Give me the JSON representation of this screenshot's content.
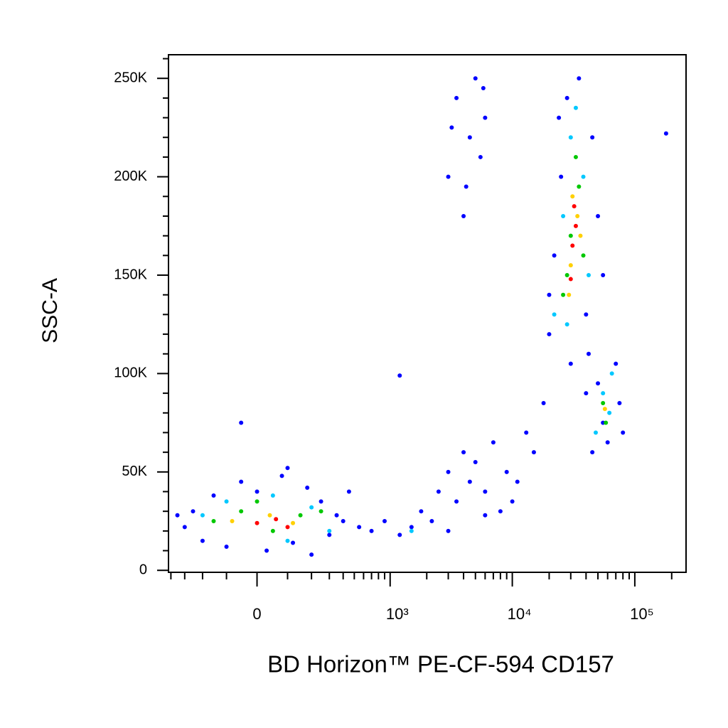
{
  "chart_data": {
    "type": "scatter",
    "xlabel": "BD Horizon™ PE-CF-594 CD157",
    "ylabel": "SSC-A",
    "xscale": "biexponential",
    "xlim": [
      -420,
      262000
    ],
    "ylim": [
      -1000,
      262000
    ],
    "xticks": [
      0,
      {
        "value": 1000,
        "label": "10³"
      },
      {
        "value": 10000,
        "label": "10⁴"
      },
      {
        "value": 100000,
        "label": "10⁵"
      }
    ],
    "yticks": [
      0,
      {
        "value": 50000,
        "label": "50K"
      },
      {
        "value": 100000,
        "label": "100K"
      },
      {
        "value": 150000,
        "label": "150K"
      },
      {
        "value": 200000,
        "label": "200K"
      },
      {
        "value": 250000,
        "label": "250K"
      }
    ],
    "series": [
      {
        "color": "#0000ff",
        "x": [
          -300,
          -250,
          -200,
          -150,
          -100,
          -50,
          0,
          30,
          80,
          120,
          180,
          250,
          300,
          350,
          450,
          550,
          -350,
          200,
          400,
          100,
          700,
          900,
          1200,
          1500,
          1800,
          2200,
          2500,
          3000,
          3500,
          4000,
          4500,
          5000,
          6000,
          7000,
          8000,
          9000,
          11000,
          13000,
          15000,
          18000,
          3000,
          6000,
          10000,
          3000,
          3500,
          4000,
          4500,
          5000,
          5500,
          6000,
          3200,
          4200,
          5800,
          20000,
          22000,
          25000,
          28000,
          30000,
          35000,
          40000,
          45000,
          50000,
          55000,
          20000,
          24000,
          42000,
          45000,
          50000,
          60000,
          70000,
          75000,
          55000,
          80000,
          40000,
          180000,
          1200,
          -50
        ],
        "y": [
          22000,
          30000,
          15000,
          38000,
          12000,
          45000,
          40000,
          10000,
          48000,
          14000,
          42000,
          35000,
          18000,
          28000,
          40000,
          22000,
          28000,
          8000,
          25000,
          52000,
          20000,
          25000,
          18000,
          22000,
          30000,
          25000,
          40000,
          50000,
          35000,
          60000,
          45000,
          55000,
          40000,
          65000,
          30000,
          50000,
          45000,
          70000,
          60000,
          85000,
          20000,
          28000,
          35000,
          200000,
          240000,
          180000,
          220000,
          250000,
          210000,
          230000,
          225000,
          195000,
          245000,
          120000,
          160000,
          200000,
          240000,
          105000,
          250000,
          130000,
          220000,
          180000,
          150000,
          140000,
          230000,
          110000,
          60000,
          95000,
          65000,
          105000,
          85000,
          75000,
          70000,
          90000,
          222000,
          99000,
          75000
        ]
      },
      {
        "color": "#00c8ff",
        "x": [
          -200,
          -100,
          50,
          200,
          300,
          100,
          1500,
          22000,
          26000,
          30000,
          38000,
          42000,
          28000,
          33000,
          55000,
          62000,
          48000,
          65000
        ],
        "y": [
          28000,
          35000,
          38000,
          32000,
          20000,
          15000,
          20000,
          130000,
          180000,
          220000,
          200000,
          150000,
          125000,
          235000,
          90000,
          80000,
          70000,
          100000
        ]
      },
      {
        "color": "#00c800",
        "x": [
          -150,
          -50,
          50,
          150,
          250,
          0,
          26000,
          30000,
          35000,
          38000,
          28000,
          33000,
          55000,
          58000
        ],
        "y": [
          25000,
          30000,
          20000,
          28000,
          30000,
          35000,
          140000,
          170000,
          195000,
          160000,
          150000,
          210000,
          85000,
          75000
        ]
      },
      {
        "color": "#ffd000",
        "x": [
          -80,
          40,
          120,
          30000,
          34000,
          31000,
          29000,
          36000,
          57000
        ],
        "y": [
          25000,
          28000,
          24000,
          155000,
          180000,
          190000,
          140000,
          170000,
          82000
        ]
      },
      {
        "color": "#ff0000",
        "x": [
          0,
          60,
          100,
          31000,
          33000,
          30000,
          32000
        ],
        "y": [
          24000,
          26000,
          22000,
          165000,
          175000,
          148000,
          185000
        ]
      }
    ]
  }
}
